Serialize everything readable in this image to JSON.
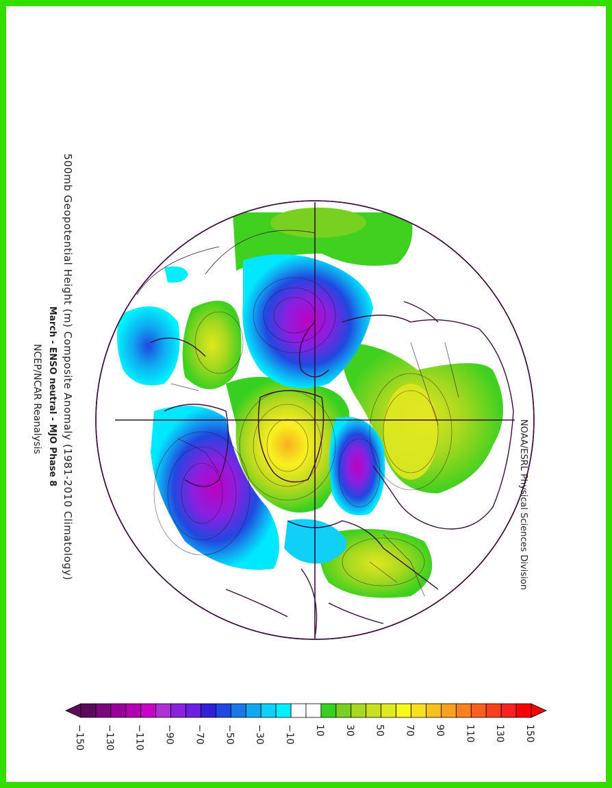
{
  "title": {
    "line1": "500mb Geopotential Height (m) Composite Anomaly (1981-2010 Climatology)",
    "line2": "March - ENSO neutral - MJO Phase 8",
    "line3": "NCEP/NCAR Reanalysis"
  },
  "credit": "NOAA/ESRL Physical Sciences Division",
  "colorbar": {
    "labels": [
      "-150",
      "-130",
      "-110",
      "-90",
      "-70",
      "-50",
      "-30",
      "-10",
      "10",
      "30",
      "50",
      "70",
      "90",
      "110",
      "130",
      "150"
    ],
    "colors": [
      "#5c0a5c",
      "#7a0a7a",
      "#990099",
      "#b000b0",
      "#c800c8",
      "#b030d8",
      "#8a20e0",
      "#6a20e0",
      "#3020d8",
      "#2048e0",
      "#1878e8",
      "#10a8f0",
      "#10d0f8",
      "#00f0ff",
      "#ffffff",
      "#ffffff",
      "#38d020",
      "#78d020",
      "#a8d820",
      "#c8e020",
      "#e0e820",
      "#f8f820",
      "#f8e020",
      "#f8c020",
      "#f8a020",
      "#f88020",
      "#f86020",
      "#f84020",
      "#f82020",
      "#f80000"
    ]
  },
  "map": {
    "features": [
      "polar stereographic projection",
      "coastlines",
      "political boundaries",
      "anomaly contours"
    ]
  }
}
